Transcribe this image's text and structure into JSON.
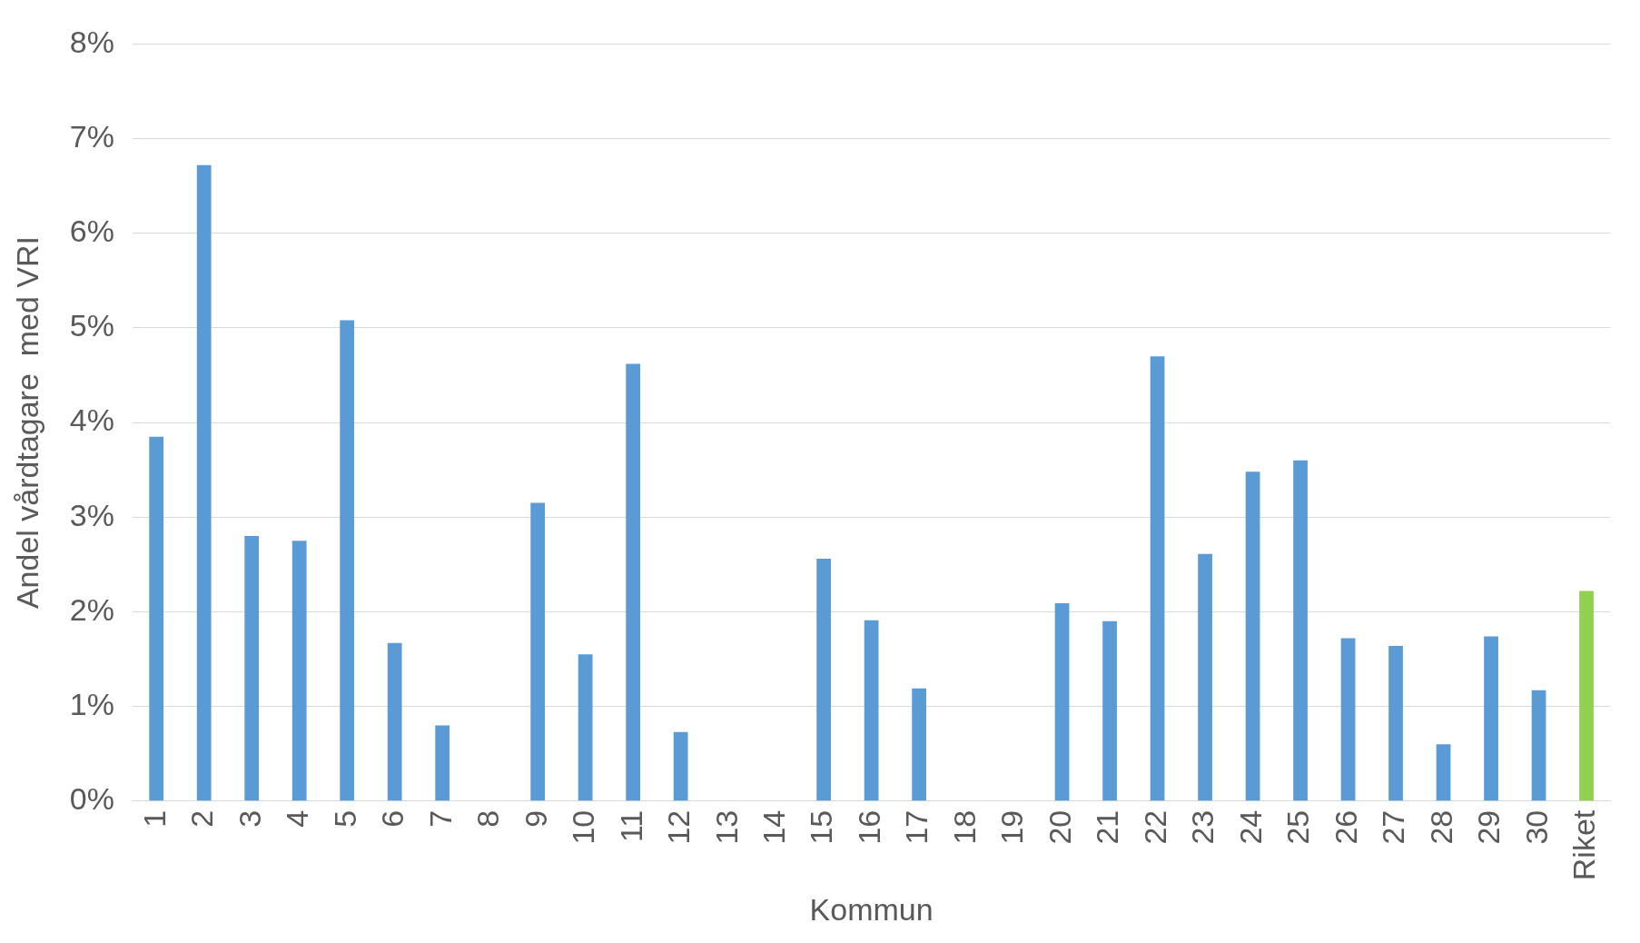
{
  "chart_data": {
    "type": "bar",
    "xlabel": "Kommun",
    "ylabel": "Andel vårdtagare  med VRI",
    "categories": [
      "1",
      "2",
      "3",
      "4",
      "5",
      "6",
      "7",
      "8",
      "9",
      "10",
      "11",
      "12",
      "13",
      "14",
      "15",
      "16",
      "17",
      "18",
      "19",
      "20",
      "21",
      "22",
      "23",
      "24",
      "25",
      "26",
      "27",
      "28",
      "29",
      "30",
      "Riket"
    ],
    "values": [
      3.85,
      6.72,
      2.8,
      2.75,
      5.08,
      1.67,
      0.8,
      0,
      3.15,
      1.55,
      4.62,
      0.73,
      0,
      0,
      2.56,
      1.91,
      1.19,
      0,
      0,
      2.09,
      1.9,
      4.7,
      2.61,
      3.48,
      3.6,
      1.72,
      1.64,
      0.6,
      1.74,
      1.17,
      2.22
    ],
    "colors": [
      "#5b9bd5",
      "#5b9bd5",
      "#5b9bd5",
      "#5b9bd5",
      "#5b9bd5",
      "#5b9bd5",
      "#5b9bd5",
      "#5b9bd5",
      "#5b9bd5",
      "#5b9bd5",
      "#5b9bd5",
      "#5b9bd5",
      "#5b9bd5",
      "#5b9bd5",
      "#5b9bd5",
      "#5b9bd5",
      "#5b9bd5",
      "#5b9bd5",
      "#5b9bd5",
      "#5b9bd5",
      "#5b9bd5",
      "#5b9bd5",
      "#5b9bd5",
      "#5b9bd5",
      "#5b9bd5",
      "#5b9bd5",
      "#5b9bd5",
      "#5b9bd5",
      "#5b9bd5",
      "#5b9bd5",
      "#92d050"
    ],
    "ylim": [
      0,
      8
    ],
    "yticks": [
      {
        "value": 0,
        "label": "0%"
      },
      {
        "value": 1,
        "label": "1%"
      },
      {
        "value": 2,
        "label": "2%"
      },
      {
        "value": 3,
        "label": "3%"
      },
      {
        "value": 4,
        "label": "4%"
      },
      {
        "value": 5,
        "label": "5%"
      },
      {
        "value": 6,
        "label": "6%"
      },
      {
        "value": 7,
        "label": "7%"
      },
      {
        "value": 8,
        "label": "8%"
      }
    ],
    "grid": "y",
    "legend": false
  }
}
